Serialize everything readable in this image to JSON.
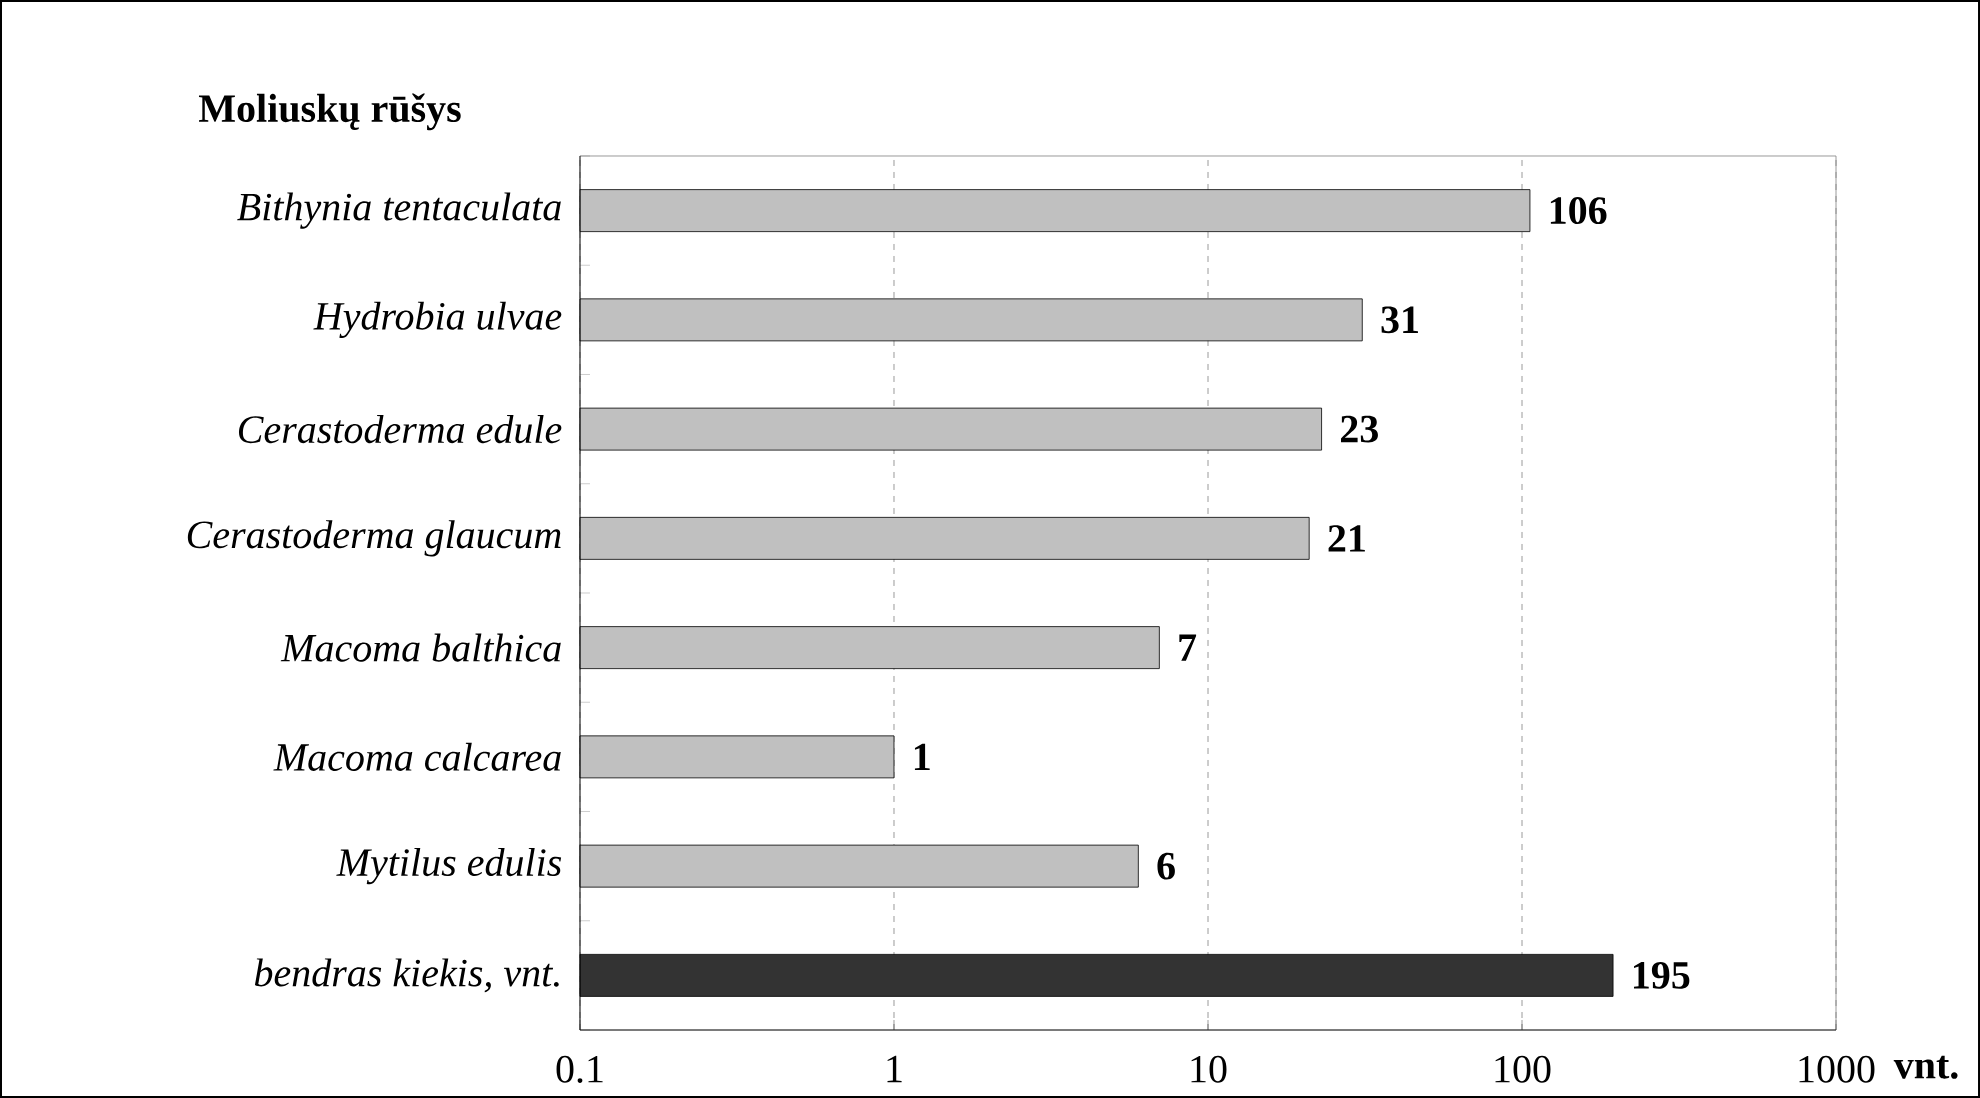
{
  "chart_data": {
    "type": "bar",
    "orientation": "horizontal",
    "ylabel": "Moliuskų rūšys",
    "xlabel": "vnt.",
    "categories": [
      "Bithynia tentaculata",
      "Hydrobia ulvae",
      "Cerastoderma edule",
      "Cerastoderma glaucum",
      "Macoma balthica",
      "Macoma calcarea",
      "Mytilus edulis",
      "bendras kiekis, vnt."
    ],
    "values": [
      106,
      31,
      23,
      21,
      7,
      1,
      6,
      195
    ],
    "colors": [
      "#c0c0c0",
      "#c0c0c0",
      "#c0c0c0",
      "#c0c0c0",
      "#c0c0c0",
      "#c0c0c0",
      "#c0c0c0",
      "#333333"
    ],
    "data_labels": true,
    "log": "x",
    "grid": "x",
    "xlim": [
      0.1,
      1000
    ],
    "xticks": [
      0.1,
      1,
      10,
      100,
      1000
    ]
  }
}
